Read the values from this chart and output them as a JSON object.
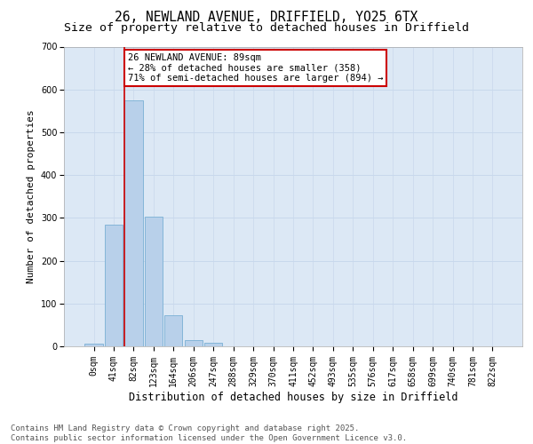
{
  "title_line1": "26, NEWLAND AVENUE, DRIFFIELD, YO25 6TX",
  "title_line2": "Size of property relative to detached houses in Driffield",
  "xlabel": "Distribution of detached houses by size in Driffield",
  "ylabel": "Number of detached properties",
  "bar_labels": [
    "0sqm",
    "41sqm",
    "82sqm",
    "123sqm",
    "164sqm",
    "206sqm",
    "247sqm",
    "288sqm",
    "329sqm",
    "370sqm",
    "411sqm",
    "452sqm",
    "493sqm",
    "535sqm",
    "576sqm",
    "617sqm",
    "658sqm",
    "699sqm",
    "740sqm",
    "781sqm",
    "822sqm"
  ],
  "bar_values": [
    7,
    285,
    575,
    302,
    73,
    15,
    9,
    0,
    0,
    0,
    0,
    0,
    0,
    0,
    0,
    0,
    0,
    0,
    0,
    0,
    0
  ],
  "bar_color": "#b8d0ea",
  "bar_edge_color": "#7aafd4",
  "highlight_line_index": 2,
  "highlight_line_color": "#cc0000",
  "annotation_text": "26 NEWLAND AVENUE: 89sqm\n← 28% of detached houses are smaller (358)\n71% of semi-detached houses are larger (894) →",
  "annotation_box_color": "#cc0000",
  "ylim": [
    0,
    700
  ],
  "yticks": [
    0,
    100,
    200,
    300,
    400,
    500,
    600,
    700
  ],
  "grid_color": "#c8d8ec",
  "bg_color": "#dce8f5",
  "footnote": "Contains HM Land Registry data © Crown copyright and database right 2025.\nContains public sector information licensed under the Open Government Licence v3.0.",
  "footnote_fontsize": 6.5,
  "title_fontsize": 10.5,
  "subtitle_fontsize": 9.5,
  "xlabel_fontsize": 8.5,
  "ylabel_fontsize": 8,
  "tick_fontsize": 7,
  "annot_fontsize": 7.5
}
